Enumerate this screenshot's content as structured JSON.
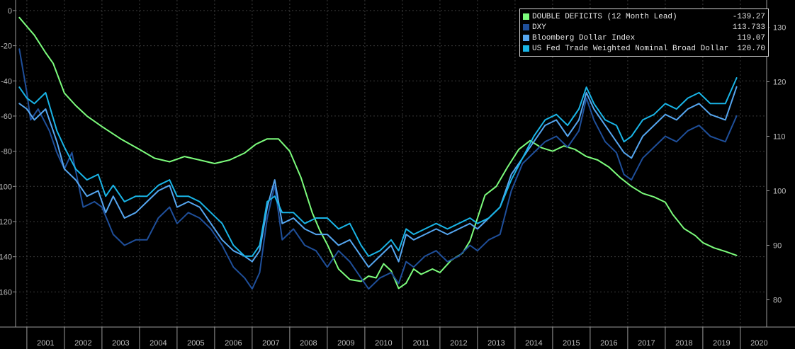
{
  "chart_data": {
    "type": "line",
    "title": "",
    "xlabel": "",
    "ylabel": "",
    "x_ticks": [
      "2001",
      "2002",
      "2003",
      "2004",
      "2005",
      "2006",
      "2007",
      "2008",
      "2009",
      "2010",
      "2011",
      "2012",
      "2013",
      "2014",
      "2015",
      "2016",
      "2017",
      "2018",
      "2019",
      "2020"
    ],
    "x_range": [
      2000.7,
      2020.7
    ],
    "left_axis": {
      "ticks": [
        "0",
        "-20",
        "-40",
        "-60",
        "-80",
        "-100",
        "-120",
        "-140",
        "-160"
      ],
      "ylim": [
        -180,
        6
      ]
    },
    "right_axis": {
      "ticks": [
        "130",
        "120",
        "110",
        "100",
        "90",
        "80"
      ],
      "ylim": [
        75,
        135
      ]
    },
    "grid": "dashed-vertical-and-horizontal",
    "legend_position": "top-right",
    "series": [
      {
        "name": "DOUBLE DEFICITS (12 Month Lead)",
        "last_value": "-139.27",
        "color": "#7cfc7c",
        "axis": "left",
        "points": [
          [
            2000.8,
            -4
          ],
          [
            2001.0,
            -9
          ],
          [
            2001.2,
            -14
          ],
          [
            2001.5,
            -24
          ],
          [
            2001.7,
            -30
          ],
          [
            2002.0,
            -47
          ],
          [
            2002.3,
            -54
          ],
          [
            2002.6,
            -60
          ],
          [
            2003.0,
            -66
          ],
          [
            2003.5,
            -73
          ],
          [
            2004.0,
            -79
          ],
          [
            2004.4,
            -84
          ],
          [
            2004.8,
            -86
          ],
          [
            2005.2,
            -83
          ],
          [
            2005.6,
            -85
          ],
          [
            2006.0,
            -87
          ],
          [
            2006.4,
            -85
          ],
          [
            2006.8,
            -81
          ],
          [
            2007.1,
            -76
          ],
          [
            2007.4,
            -73
          ],
          [
            2007.7,
            -73
          ],
          [
            2008.0,
            -80
          ],
          [
            2008.3,
            -95
          ],
          [
            2008.6,
            -115
          ],
          [
            2008.8,
            -125
          ],
          [
            2009.0,
            -133
          ],
          [
            2009.3,
            -147
          ],
          [
            2009.6,
            -153
          ],
          [
            2009.9,
            -154
          ],
          [
            2010.1,
            -151
          ],
          [
            2010.3,
            -152
          ],
          [
            2010.5,
            -144
          ],
          [
            2010.7,
            -148
          ],
          [
            2010.9,
            -158
          ],
          [
            2011.1,
            -155
          ],
          [
            2011.3,
            -147
          ],
          [
            2011.5,
            -150
          ],
          [
            2011.8,
            -147
          ],
          [
            2012.0,
            -149
          ],
          [
            2012.3,
            -142
          ],
          [
            2012.6,
            -138
          ],
          [
            2012.8,
            -131
          ],
          [
            2013.0,
            -118
          ],
          [
            2013.2,
            -105
          ],
          [
            2013.5,
            -100
          ],
          [
            2013.8,
            -89
          ],
          [
            2014.1,
            -79
          ],
          [
            2014.4,
            -74
          ],
          [
            2014.7,
            -78
          ],
          [
            2015.0,
            -80
          ],
          [
            2015.3,
            -77
          ],
          [
            2015.6,
            -79
          ],
          [
            2015.9,
            -83
          ],
          [
            2016.2,
            -85
          ],
          [
            2016.5,
            -89
          ],
          [
            2016.8,
            -95
          ],
          [
            2017.1,
            -100
          ],
          [
            2017.4,
            -104
          ],
          [
            2017.7,
            -106
          ],
          [
            2018.0,
            -109
          ],
          [
            2018.2,
            -116
          ],
          [
            2018.5,
            -124
          ],
          [
            2018.8,
            -128
          ],
          [
            2019.0,
            -132
          ],
          [
            2019.3,
            -135
          ],
          [
            2019.6,
            -137
          ],
          [
            2019.9,
            -139.27
          ]
        ]
      },
      {
        "name": "DXY",
        "last_value": "113.733",
        "color": "#1f4f9a",
        "axis": "right",
        "points": [
          [
            2000.8,
            126
          ],
          [
            2001.0,
            118
          ],
          [
            2001.1,
            113
          ],
          [
            2001.3,
            115
          ],
          [
            2001.6,
            111
          ],
          [
            2001.8,
            107
          ],
          [
            2002.0,
            104
          ],
          [
            2002.2,
            107
          ],
          [
            2002.5,
            97
          ],
          [
            2002.8,
            98
          ],
          [
            2003.0,
            97
          ],
          [
            2003.3,
            92
          ],
          [
            2003.6,
            90
          ],
          [
            2003.9,
            91
          ],
          [
            2004.2,
            91
          ],
          [
            2004.5,
            95
          ],
          [
            2004.8,
            97
          ],
          [
            2005.0,
            94
          ],
          [
            2005.3,
            96
          ],
          [
            2005.6,
            95
          ],
          [
            2005.9,
            93
          ],
          [
            2006.2,
            90
          ],
          [
            2006.5,
            86
          ],
          [
            2006.8,
            84
          ],
          [
            2007.0,
            82
          ],
          [
            2007.2,
            85
          ],
          [
            2007.4,
            95
          ],
          [
            2007.6,
            101
          ],
          [
            2007.8,
            91
          ],
          [
            2008.1,
            93
          ],
          [
            2008.4,
            90
          ],
          [
            2008.7,
            89
          ],
          [
            2009.0,
            86
          ],
          [
            2009.3,
            89
          ],
          [
            2009.6,
            87
          ],
          [
            2009.9,
            84
          ],
          [
            2010.1,
            82
          ],
          [
            2010.4,
            84
          ],
          [
            2010.7,
            85
          ],
          [
            2010.9,
            83
          ],
          [
            2011.1,
            87
          ],
          [
            2011.3,
            86
          ],
          [
            2011.6,
            88
          ],
          [
            2011.9,
            89
          ],
          [
            2012.2,
            87
          ],
          [
            2012.5,
            88
          ],
          [
            2012.8,
            90
          ],
          [
            2013.0,
            89
          ],
          [
            2013.3,
            91
          ],
          [
            2013.6,
            92
          ],
          [
            2013.9,
            100
          ],
          [
            2014.2,
            105
          ],
          [
            2014.5,
            107
          ],
          [
            2014.8,
            109
          ],
          [
            2015.1,
            110
          ],
          [
            2015.4,
            108
          ],
          [
            2015.7,
            111
          ],
          [
            2015.9,
            117
          ],
          [
            2016.1,
            113
          ],
          [
            2016.4,
            109
          ],
          [
            2016.7,
            107
          ],
          [
            2016.9,
            103
          ],
          [
            2017.1,
            102
          ],
          [
            2017.4,
            106
          ],
          [
            2017.7,
            108
          ],
          [
            2018.0,
            110
          ],
          [
            2018.3,
            109
          ],
          [
            2018.6,
            111
          ],
          [
            2018.9,
            112
          ],
          [
            2019.2,
            110
          ],
          [
            2019.6,
            109
          ],
          [
            2019.9,
            113.733
          ]
        ]
      },
      {
        "name": "Bloomberg Dollar Index",
        "last_value": "119.07",
        "color": "#55a6f0",
        "axis": "right",
        "points": [
          [
            2000.8,
            116
          ],
          [
            2001.0,
            115
          ],
          [
            2001.2,
            113
          ],
          [
            2001.5,
            115
          ],
          [
            2001.8,
            109
          ],
          [
            2002.0,
            104
          ],
          [
            2002.3,
            102
          ],
          [
            2002.6,
            99
          ],
          [
            2002.9,
            100
          ],
          [
            2003.1,
            96
          ],
          [
            2003.3,
            99
          ],
          [
            2003.6,
            95
          ],
          [
            2003.9,
            96
          ],
          [
            2004.2,
            98
          ],
          [
            2004.5,
            100
          ],
          [
            2004.8,
            101
          ],
          [
            2005.0,
            97
          ],
          [
            2005.3,
            98
          ],
          [
            2005.6,
            97
          ],
          [
            2005.9,
            94
          ],
          [
            2006.2,
            91
          ],
          [
            2006.5,
            89
          ],
          [
            2006.8,
            88
          ],
          [
            2007.0,
            87
          ],
          [
            2007.2,
            89
          ],
          [
            2007.4,
            97
          ],
          [
            2007.6,
            102
          ],
          [
            2007.8,
            94
          ],
          [
            2008.1,
            95
          ],
          [
            2008.4,
            93
          ],
          [
            2008.7,
            92
          ],
          [
            2009.0,
            92
          ],
          [
            2009.3,
            90
          ],
          [
            2009.6,
            91
          ],
          [
            2009.9,
            88
          ],
          [
            2010.1,
            86
          ],
          [
            2010.4,
            88
          ],
          [
            2010.7,
            90
          ],
          [
            2010.9,
            87
          ],
          [
            2011.1,
            92
          ],
          [
            2011.3,
            91
          ],
          [
            2011.6,
            92
          ],
          [
            2011.9,
            93
          ],
          [
            2012.2,
            92
          ],
          [
            2012.5,
            93
          ],
          [
            2012.8,
            94
          ],
          [
            2013.0,
            93
          ],
          [
            2013.3,
            95
          ],
          [
            2013.6,
            97
          ],
          [
            2013.9,
            103
          ],
          [
            2014.2,
            106
          ],
          [
            2014.5,
            109
          ],
          [
            2014.8,
            112
          ],
          [
            2015.1,
            113
          ],
          [
            2015.4,
            110
          ],
          [
            2015.7,
            113
          ],
          [
            2015.9,
            118
          ],
          [
            2016.1,
            115
          ],
          [
            2016.4,
            112
          ],
          [
            2016.7,
            109
          ],
          [
            2016.9,
            107
          ],
          [
            2017.1,
            106
          ],
          [
            2017.4,
            110
          ],
          [
            2017.7,
            112
          ],
          [
            2018.0,
            114
          ],
          [
            2018.3,
            113
          ],
          [
            2018.6,
            115
          ],
          [
            2018.9,
            116
          ],
          [
            2019.2,
            114
          ],
          [
            2019.6,
            113
          ],
          [
            2019.9,
            119.07
          ]
        ]
      },
      {
        "name": "US Fed Trade Weighted Nominal Broad Dollar Index",
        "last_value": "120.70",
        "color": "#19b4e6",
        "axis": "right",
        "points": [
          [
            2000.8,
            119
          ],
          [
            2001.0,
            117
          ],
          [
            2001.2,
            116
          ],
          [
            2001.5,
            118
          ],
          [
            2001.8,
            111
          ],
          [
            2002.0,
            108
          ],
          [
            2002.3,
            104
          ],
          [
            2002.6,
            102
          ],
          [
            2002.9,
            103
          ],
          [
            2003.1,
            99
          ],
          [
            2003.3,
            101
          ],
          [
            2003.6,
            98
          ],
          [
            2003.9,
            99
          ],
          [
            2004.2,
            99
          ],
          [
            2004.5,
            101
          ],
          [
            2004.8,
            102
          ],
          [
            2005.0,
            99
          ],
          [
            2005.3,
            99
          ],
          [
            2005.6,
            98
          ],
          [
            2005.9,
            96
          ],
          [
            2006.2,
            94
          ],
          [
            2006.5,
            90
          ],
          [
            2006.8,
            88
          ],
          [
            2007.0,
            88
          ],
          [
            2007.2,
            90
          ],
          [
            2007.4,
            98
          ],
          [
            2007.6,
            99
          ],
          [
            2007.8,
            96
          ],
          [
            2008.1,
            96
          ],
          [
            2008.4,
            94
          ],
          [
            2008.7,
            95
          ],
          [
            2009.0,
            95
          ],
          [
            2009.3,
            93
          ],
          [
            2009.6,
            94
          ],
          [
            2009.9,
            90
          ],
          [
            2010.1,
            88
          ],
          [
            2010.4,
            89
          ],
          [
            2010.7,
            91
          ],
          [
            2010.9,
            89
          ],
          [
            2011.1,
            93
          ],
          [
            2011.3,
            92
          ],
          [
            2011.6,
            93
          ],
          [
            2011.9,
            94
          ],
          [
            2012.2,
            93
          ],
          [
            2012.5,
            94
          ],
          [
            2012.8,
            95
          ],
          [
            2013.0,
            94
          ],
          [
            2013.3,
            95
          ],
          [
            2013.6,
            97
          ],
          [
            2013.9,
            102
          ],
          [
            2014.2,
            106
          ],
          [
            2014.5,
            110
          ],
          [
            2014.8,
            113
          ],
          [
            2015.1,
            114
          ],
          [
            2015.4,
            112
          ],
          [
            2015.7,
            115
          ],
          [
            2015.9,
            119
          ],
          [
            2016.1,
            116
          ],
          [
            2016.4,
            113
          ],
          [
            2016.7,
            112
          ],
          [
            2016.9,
            109
          ],
          [
            2017.1,
            110
          ],
          [
            2017.4,
            113
          ],
          [
            2017.7,
            114
          ],
          [
            2018.0,
            116
          ],
          [
            2018.3,
            115
          ],
          [
            2018.6,
            117
          ],
          [
            2018.9,
            118
          ],
          [
            2019.2,
            116
          ],
          [
            2019.6,
            116
          ],
          [
            2019.9,
            120.7
          ]
        ]
      }
    ]
  }
}
